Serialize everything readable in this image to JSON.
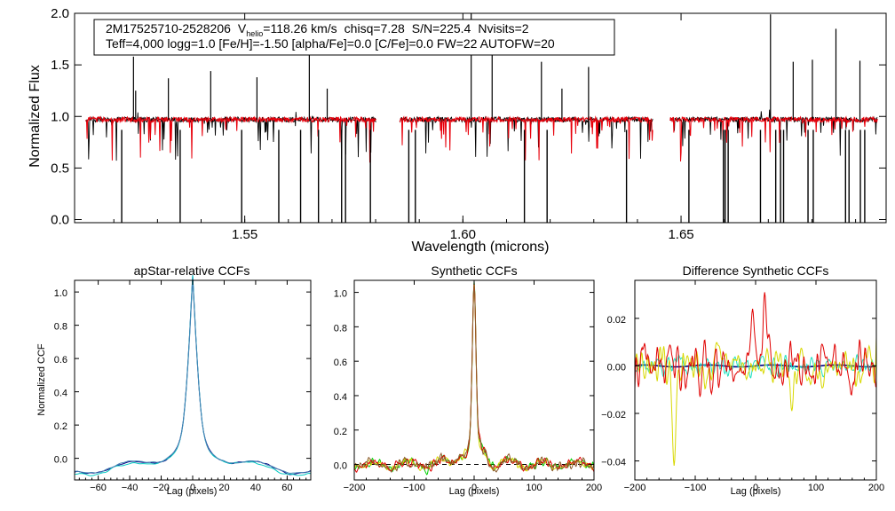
{
  "chart_data": [
    {
      "type": "line",
      "panel": "spectrum",
      "info_line1": {
        "id": "2M17525710-2528206",
        "vhelio_prefix": "V",
        "vhelio_sub": "helio",
        "vhelio_value": "=118.26 km/s",
        "chisq": "chisq=7.28",
        "sn": "S/N=225.4",
        "nvisits": "Nvisits=2"
      },
      "info_line2": "Teff=4,000 logg=1.0 [Fe/H]=-1.50 [alpha/Fe]=0.0 [C/Fe]=0.0 FW=22 AUTOFW=20",
      "xlabel": "Wavelength (microns)",
      "ylabel": "Normalized Flux",
      "xlim": [
        1.511,
        1.697
      ],
      "ylim": [
        -0.03,
        2.0
      ],
      "xticks": [
        1.55,
        1.6,
        1.65
      ],
      "xtick_labels": [
        "1.55",
        "1.60",
        "1.65"
      ],
      "yticks": [
        0.0,
        0.5,
        1.0,
        1.5,
        2.0
      ],
      "ytick_labels": [
        "0.0",
        "0.5",
        "1.0",
        "1.5",
        "2.0"
      ],
      "chip_ranges": [
        [
          1.5135,
          1.5801
        ],
        [
          1.5855,
          1.6435
        ],
        [
          1.6475,
          1.695
        ]
      ],
      "continuum_level": 0.97,
      "series": [
        {
          "name": "observed",
          "color": "#000000"
        },
        {
          "name": "model",
          "color": "#e8000b"
        }
      ],
      "dropouts": [
        1.5218,
        1.5352,
        1.5493,
        1.5578,
        1.5628,
        1.5669,
        1.5722,
        1.5731,
        1.5788,
        1.5876,
        1.5891,
        1.6141,
        1.6193,
        1.6375,
        1.6518,
        1.6597,
        1.6601,
        1.6608,
        1.6682,
        1.6717,
        1.6728,
        1.6735,
        1.6791,
        1.6803,
        1.6877,
        1.6885,
        1.6911,
        1.6921
      ],
      "spikes": [
        [
          1.5245,
          1.58
        ],
        [
          1.525,
          1.25
        ],
        [
          1.5325,
          1.37
        ],
        [
          1.5422,
          1.44
        ],
        [
          1.5528,
          1.38
        ],
        [
          1.5648,
          1.65
        ],
        [
          1.5689,
          1.27
        ],
        [
          1.6019,
          2.0
        ],
        [
          1.6067,
          1.8
        ],
        [
          1.618,
          1.53
        ],
        [
          1.6227,
          1.27
        ],
        [
          1.6288,
          1.48
        ],
        [
          1.6705,
          1.99
        ],
        [
          1.6757,
          1.53
        ],
        [
          1.6801,
          1.55
        ],
        [
          1.6855,
          1.85
        ],
        [
          1.691,
          1.54
        ]
      ]
    },
    {
      "type": "line",
      "panel": "apstar_ccf",
      "title": "apStar-relative CCFs",
      "xlabel": "Lag (pixels)",
      "ylabel": "Normalized CCF",
      "xlim": [
        -75,
        75
      ],
      "ylim": [
        -0.13,
        1.07
      ],
      "xticks": [
        -60,
        -40,
        -20,
        0,
        20,
        40,
        60
      ],
      "xtick_labels": [
        "−60",
        "−40",
        "−20",
        "0",
        "20",
        "40",
        "60"
      ],
      "yticks": [
        0.0,
        0.2,
        0.4,
        0.6,
        0.8,
        1.0
      ],
      "ytick_labels": [
        "0.0",
        "0.2",
        "0.4",
        "0.6",
        "0.8",
        "1.0"
      ],
      "series": [
        {
          "name": "ccf-1",
          "color": "#000080",
          "peak": 0.99,
          "offset": 0.0
        },
        {
          "name": "ccf-2",
          "color": "#00c8c0",
          "peak": 0.99,
          "offset": -0.012
        },
        {
          "name": "ccf-3",
          "color": "#4682b4",
          "peak": 0.97,
          "offset": 0.005
        }
      ]
    },
    {
      "type": "line",
      "panel": "synthetic_ccf",
      "title": "Synthetic CCFs",
      "xlabel": "Lag (pixels)",
      "ylabel": "",
      "xlim": [
        -200,
        200
      ],
      "ylim": [
        -0.09,
        1.07
      ],
      "xticks": [
        -200,
        -100,
        0,
        100,
        200
      ],
      "xtick_labels": [
        "−200",
        "−100",
        "0",
        "100",
        "200"
      ],
      "yticks": [
        0.0,
        0.2,
        0.4,
        0.6,
        0.8,
        1.0
      ],
      "ytick_labels": [
        "0.0",
        "0.2",
        "0.4",
        "0.6",
        "0.8",
        "1.0"
      ],
      "zero_line": 0.0,
      "series": [
        {
          "name": "ccf-green",
          "color": "#00d000",
          "seed": 11
        },
        {
          "name": "ccf-yellow",
          "color": "#d8d800",
          "seed": 23
        },
        {
          "name": "ccf-red",
          "color": "#e00000",
          "seed": 37
        },
        {
          "name": "ccf-brown",
          "color": "#8b5a2b",
          "seed": 51
        }
      ]
    },
    {
      "type": "line",
      "panel": "difference_ccf",
      "title": "Difference Synthetic CCFs",
      "xlabel": "Lag (pixels)",
      "ylabel": "",
      "xlim": [
        -200,
        200
      ],
      "ylim": [
        -0.048,
        0.036
      ],
      "xticks": [
        -200,
        -100,
        0,
        100,
        200
      ],
      "xtick_labels": [
        "−200",
        "−100",
        "0",
        "100",
        "200"
      ],
      "yticks": [
        -0.04,
        -0.02,
        0.0,
        0.02
      ],
      "ytick_labels": [
        "−0.04",
        "−0.02",
        "0.00",
        "0.02"
      ],
      "series": [
        {
          "name": "diff-navy",
          "color": "#000080",
          "amp": 0.0004,
          "seed": 5
        },
        {
          "name": "diff-cyan",
          "color": "#20e0c0",
          "amp": 0.005,
          "seed": 13
        },
        {
          "name": "diff-yellow",
          "color": "#d8d800",
          "amp": 0.012,
          "seed": 29
        },
        {
          "name": "diff-red",
          "color": "#e00000",
          "amp": 0.013,
          "seed": 41
        }
      ],
      "features": [
        {
          "series": "diff-red",
          "x": 15,
          "y": 0.031
        },
        {
          "series": "diff-red",
          "x": -5,
          "y": 0.024
        },
        {
          "series": "diff-yellow",
          "x": -135,
          "y": -0.042
        },
        {
          "series": "diff-yellow",
          "x": 60,
          "y": -0.019
        }
      ]
    }
  ]
}
